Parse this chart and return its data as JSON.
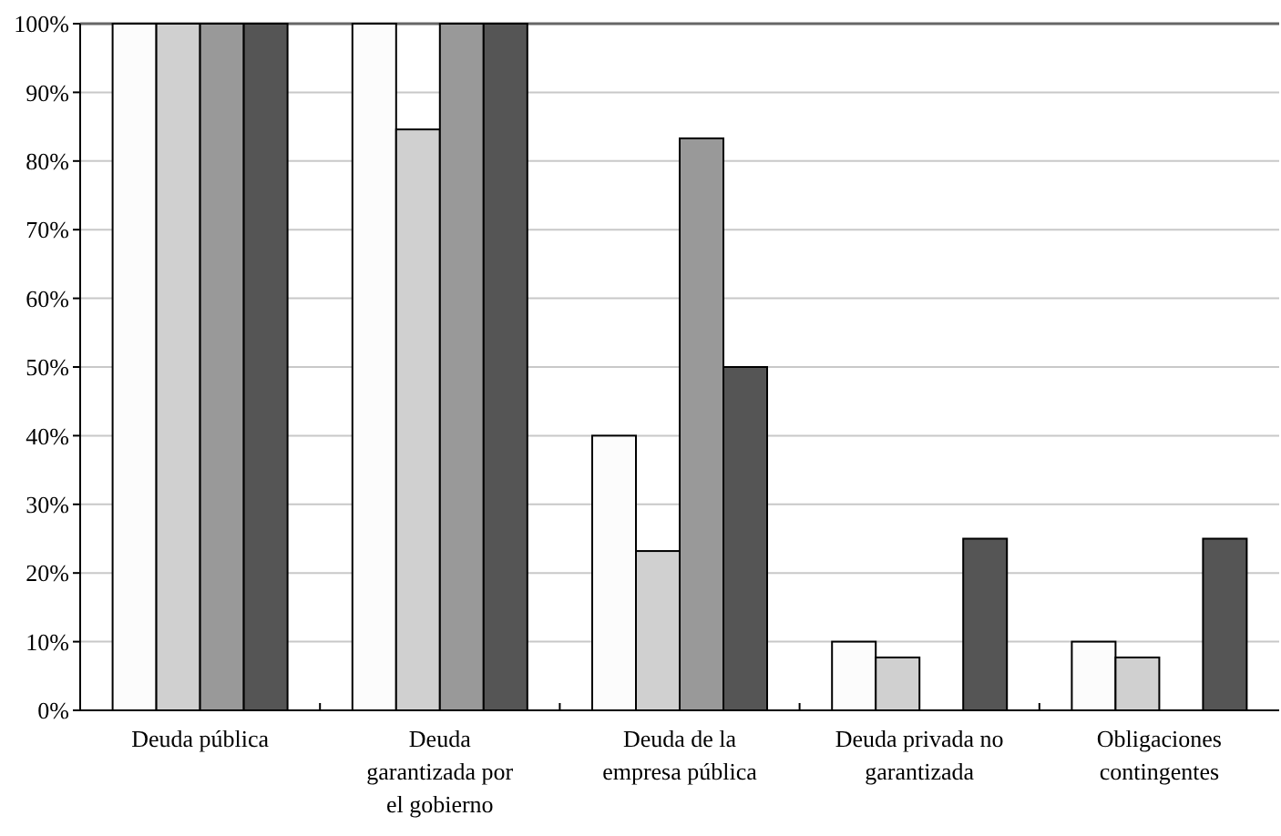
{
  "chart_data": {
    "type": "bar",
    "categories": [
      "Deuda pública",
      "Deuda garantizada por el gobierno",
      "Deuda de la empresa pública",
      "Deuda privada no garantizada",
      "Obligaciones contingentes"
    ],
    "series": [
      {
        "color": "#fcfcfc",
        "values": [
          100,
          100,
          40,
          10,
          10
        ]
      },
      {
        "color": "#d0d0d0",
        "values": [
          100,
          84.6,
          23.2,
          7.7,
          7.7
        ]
      },
      {
        "color": "#999999",
        "values": [
          100,
          100,
          83.3,
          0,
          0
        ]
      },
      {
        "color": "#555555",
        "values": [
          100,
          100,
          50,
          25,
          25
        ]
      }
    ],
    "ylim": [
      0,
      100
    ],
    "yticks": [
      {
        "value": 0,
        "label": "0%"
      },
      {
        "value": 10,
        "label": "10%"
      },
      {
        "value": 20,
        "label": "20%"
      },
      {
        "value": 30,
        "label": "30%"
      },
      {
        "value": 40,
        "label": "40%"
      },
      {
        "value": 50,
        "label": "50%"
      },
      {
        "value": 60,
        "label": "60%"
      },
      {
        "value": 70,
        "label": "70%"
      },
      {
        "value": 80,
        "label": "80%"
      },
      {
        "value": 90,
        "label": "90%"
      },
      {
        "value": 100,
        "label": "100%"
      }
    ],
    "grid": "y"
  }
}
